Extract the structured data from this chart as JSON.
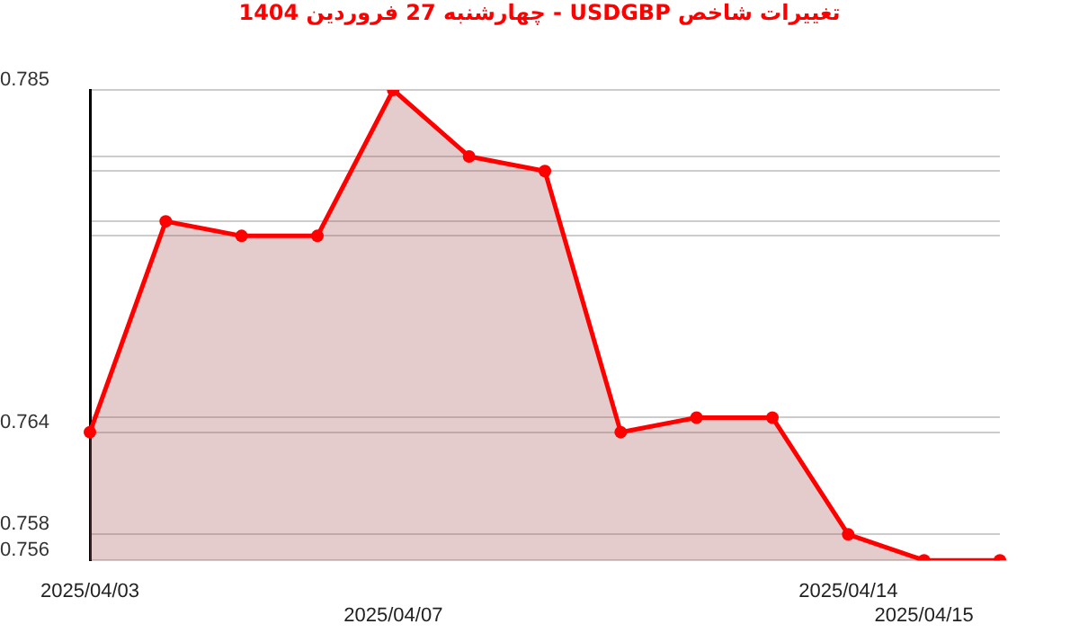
{
  "chart_data": {
    "type": "area",
    "title": "تغییرات شاخص USDGBP - چهارشنبه  27 فروردین 1404",
    "categories": [
      "2025/04/03",
      null,
      null,
      null,
      "2025/04/07",
      null,
      null,
      null,
      null,
      null,
      "2025/04/14",
      "2025/04/15",
      null
    ],
    "series": [
      {
        "color": "#ff0000",
        "values": [
          0.7639,
          0.7769,
          0.776,
          0.776,
          0.785,
          0.7809,
          0.78,
          0.7639,
          0.7648,
          0.7648,
          0.7576,
          0.756,
          0.756
        ]
      }
    ],
    "ylim": [
      0.756,
      0.785
    ],
    "yticks": [
      0.785,
      {
        "value": 0.7809,
        "label": null
      },
      {
        "value": 0.78,
        "label": null
      },
      {
        "value": 0.7769,
        "label": null
      },
      {
        "value": 0.776,
        "label": null
      },
      {
        "value": 0.7648,
        "label": null
      },
      {
        "value": 0.7639,
        "label": "0.764"
      },
      {
        "value": 0.7576,
        "label": "0.758"
      },
      0.756
    ],
    "grid": "y",
    "marker": "circle",
    "legend": false
  }
}
